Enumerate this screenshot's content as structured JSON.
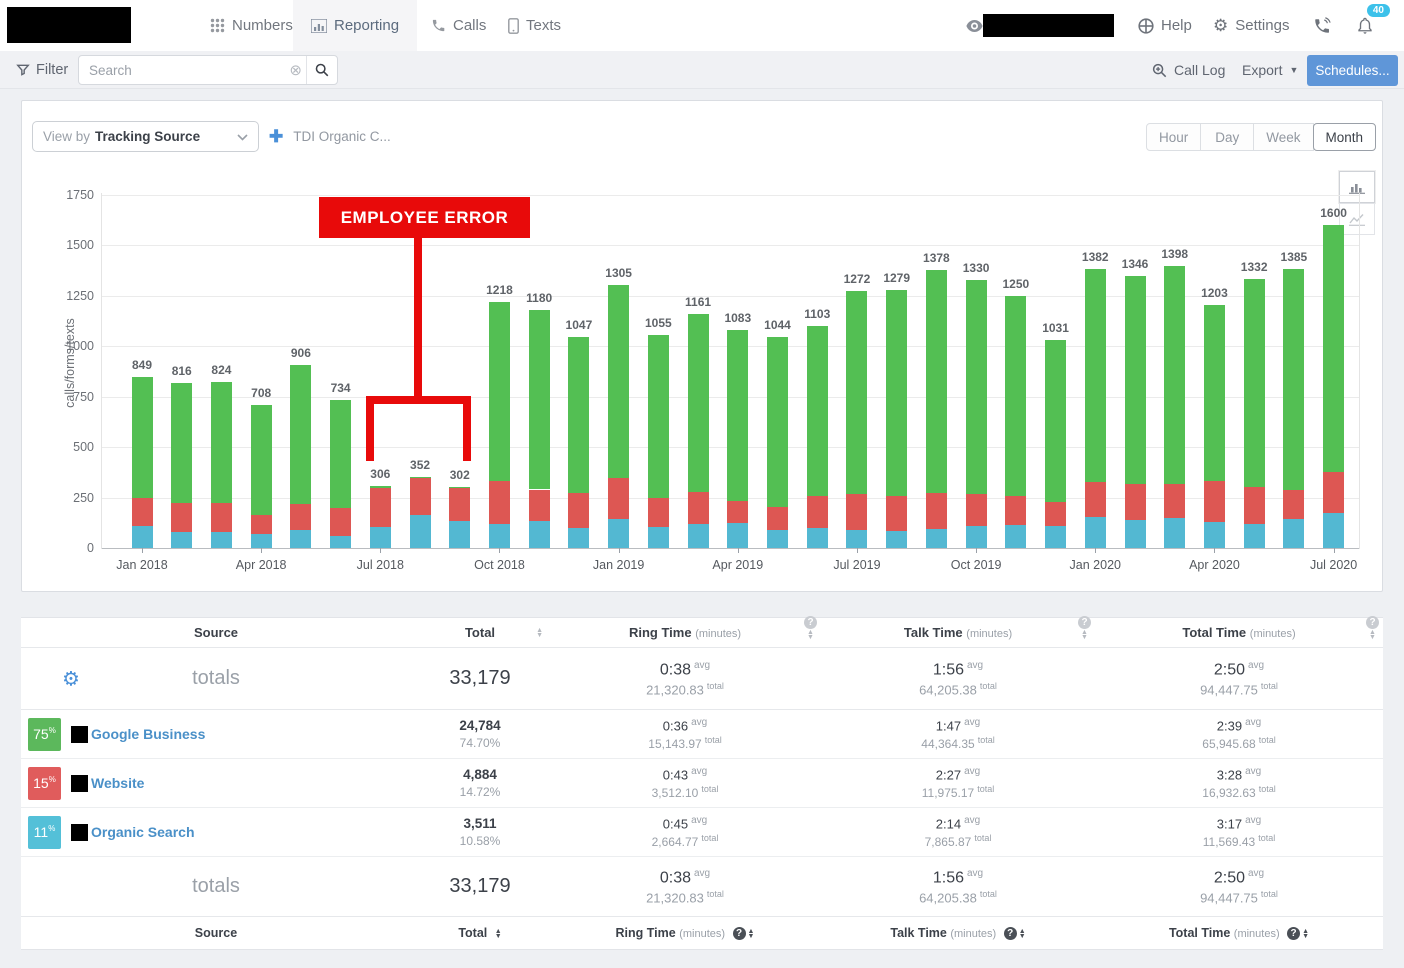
{
  "labels": {
    "avg": "avg",
    "total": "total"
  },
  "nav": {
    "tabs": [
      {
        "label": "Numbers"
      },
      {
        "label": "Reporting"
      },
      {
        "label": "Calls"
      },
      {
        "label": "Texts"
      }
    ],
    "help_label": "Help",
    "settings_label": "Settings",
    "notification_count": "40"
  },
  "filter_bar": {
    "filter_label": "Filter",
    "search_placeholder": "Search",
    "call_log_label": "Call Log",
    "export_label": "Export",
    "schedules_label": "Schedules..."
  },
  "chart_controls": {
    "view_by_prefix": "View by",
    "view_by_value": "Tracking Source",
    "compare_label": "TDI Organic C...",
    "range_buttons": [
      "Hour",
      "Day",
      "Week",
      "Month"
    ],
    "active_range": "Month"
  },
  "annotation": {
    "label": "EMPLOYEE ERROR"
  },
  "chart_data": {
    "type": "bar",
    "stacked": true,
    "ylabel": "calls/forms/texts",
    "ylim": [
      0,
      1750
    ],
    "yticks": [
      0,
      250,
      500,
      750,
      1000,
      1250,
      1500,
      1750
    ],
    "grid": true,
    "x_tick_labels": [
      "Jan 2018",
      "Apr 2018",
      "Jul 2018",
      "Oct 2018",
      "Jan 2019",
      "Apr 2019",
      "Jul 2019",
      "Oct 2019",
      "Jan 2020",
      "Apr 2020",
      "Jul 2020"
    ],
    "categories": [
      "Jan 2018",
      "Feb 2018",
      "Mar 2018",
      "Apr 2018",
      "May 2018",
      "Jun 2018",
      "Jul 2018",
      "Aug 2018",
      "Sep 2018",
      "Oct 2018",
      "Nov 2018",
      "Dec 2018",
      "Jan 2019",
      "Feb 2019",
      "Mar 2019",
      "Apr 2019",
      "May 2019",
      "Jun 2019",
      "Jul 2019",
      "Aug 2019",
      "Sep 2019",
      "Oct 2019",
      "Nov 2019",
      "Dec 2019",
      "Jan 2020",
      "Feb 2020",
      "Mar 2020",
      "Apr 2020",
      "May 2020",
      "Jun 2020",
      "Jul 2020"
    ],
    "totals": [
      849,
      816,
      824,
      708,
      906,
      734,
      306,
      352,
      302,
      1218,
      1180,
      1047,
      1305,
      1055,
      1161,
      1083,
      1044,
      1103,
      1272,
      1279,
      1378,
      1330,
      1250,
      1031,
      1382,
      1346,
      1398,
      1203,
      1332,
      1385,
      1600
    ],
    "series": [
      {
        "name": "Organic Search",
        "color": "#53b8d2",
        "values": [
          110,
          80,
          80,
          70,
          90,
          60,
          104,
          165,
          135,
          120,
          135,
          100,
          145,
          105,
          120,
          125,
          90,
          100,
          90,
          85,
          95,
          110,
          115,
          110,
          155,
          140,
          150,
          130,
          120,
          145,
          175
        ]
      },
      {
        "name": "Website",
        "color": "#dd5753",
        "values": [
          140,
          145,
          145,
          95,
          130,
          140,
          194,
          184,
          160,
          210,
          155,
          175,
          200,
          145,
          160,
          110,
          115,
          160,
          180,
          175,
          180,
          160,
          145,
          120,
          170,
          175,
          165,
          200,
          180,
          145,
          200
        ]
      },
      {
        "name": "Google Business",
        "color": "#53bf53",
        "values": [
          599,
          591,
          599,
          543,
          686,
          534,
          8,
          3,
          7,
          888,
          890,
          772,
          960,
          805,
          881,
          848,
          839,
          843,
          1002,
          1019,
          1103,
          1060,
          990,
          801,
          1057,
          1031,
          1083,
          873,
          1032,
          1095,
          1225
        ]
      }
    ]
  },
  "table": {
    "columns": {
      "source": "Source",
      "total": "Total",
      "ring": "Ring Time",
      "talk": "Talk Time",
      "time": "Total Time",
      "unit": "(minutes)"
    },
    "totals_row": {
      "label": "totals",
      "total": "33,179",
      "ring_avg": "0:38",
      "ring_total": "21,320.83",
      "talk_avg": "1:56",
      "talk_total": "64,205.38",
      "time_avg": "2:50",
      "time_total": "94,447.75"
    },
    "rows": [
      {
        "percent": "75",
        "percent_color": "#5cb85c",
        "name": "Google Business",
        "total": "24,784",
        "share": "74.70%",
        "ring_avg": "0:36",
        "ring_total": "15,143.97",
        "talk_avg": "1:47",
        "talk_total": "44,364.35",
        "time_avg": "2:39",
        "time_total": "65,945.68"
      },
      {
        "percent": "15",
        "percent_color": "#e05c5c",
        "name": "Website",
        "total": "4,884",
        "share": "14.72%",
        "ring_avg": "0:43",
        "ring_total": "3,512.10",
        "talk_avg": "2:27",
        "talk_total": "11,975.17",
        "time_avg": "3:28",
        "time_total": "16,932.63"
      },
      {
        "percent": "11",
        "percent_color": "#54c0d8",
        "name": "Organic Search",
        "total": "3,511",
        "share": "10.58%",
        "ring_avg": "0:45",
        "ring_total": "2,664.77",
        "talk_avg": "2:14",
        "talk_total": "7,865.87",
        "time_avg": "3:17",
        "time_total": "11,569.43"
      }
    ]
  }
}
